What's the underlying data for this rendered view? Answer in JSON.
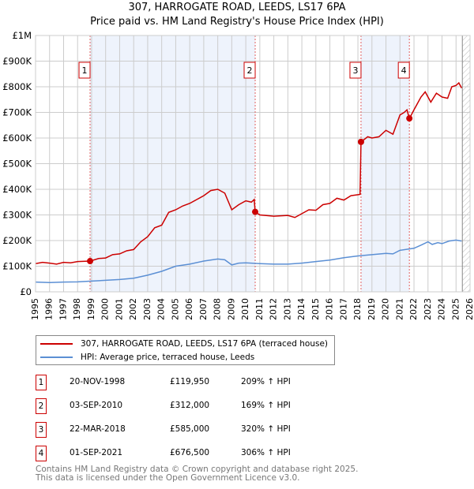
{
  "chart_data": {
    "type": "line",
    "title": "307, HARROGATE ROAD, LEEDS, LS17 6PA",
    "subtitle": "Price paid vs. HM Land Registry's House Price Index (HPI)",
    "xlim": [
      1995,
      2026
    ],
    "ylim": [
      0,
      1000000
    ],
    "x_ticks": [
      "1995",
      "1996",
      "1997",
      "1998",
      "1999",
      "2000",
      "2001",
      "2002",
      "2003",
      "2004",
      "2005",
      "2006",
      "2007",
      "2008",
      "2009",
      "2010",
      "2011",
      "2012",
      "2013",
      "2014",
      "2015",
      "2016",
      "2017",
      "2018",
      "2019",
      "2020",
      "2021",
      "2022",
      "2023",
      "2024",
      "2025",
      "2026"
    ],
    "y_ticks": [
      {
        "v": 0,
        "l": "£0"
      },
      {
        "v": 100000,
        "l": "£100K"
      },
      {
        "v": 200000,
        "l": "£200K"
      },
      {
        "v": 300000,
        "l": "£300K"
      },
      {
        "v": 400000,
        "l": "£400K"
      },
      {
        "v": 500000,
        "l": "£500K"
      },
      {
        "v": 600000,
        "l": "£600K"
      },
      {
        "v": 700000,
        "l": "£700K"
      },
      {
        "v": 800000,
        "l": "£800K"
      },
      {
        "v": 900000,
        "l": "£900K"
      },
      {
        "v": 1000000,
        "l": "£1M"
      }
    ],
    "grid": true,
    "series": [
      {
        "name": "307, HARROGATE ROAD, LEEDS, LS17 6PA (terraced house)",
        "color": "#cc0000",
        "points": [
          [
            1995,
            110
          ],
          [
            1995.5,
            115
          ],
          [
            1996,
            112
          ],
          [
            1996.5,
            108
          ],
          [
            1997,
            115
          ],
          [
            1997.5,
            113
          ],
          [
            1998,
            118
          ],
          [
            1998.9,
            120
          ],
          [
            1999.5,
            130
          ],
          [
            2000,
            132
          ],
          [
            2000.5,
            145
          ],
          [
            2001,
            148
          ],
          [
            2001.5,
            160
          ],
          [
            2002,
            165
          ],
          [
            2002.5,
            195
          ],
          [
            2003,
            215
          ],
          [
            2003.5,
            250
          ],
          [
            2004,
            260
          ],
          [
            2004.5,
            310
          ],
          [
            2005,
            320
          ],
          [
            2005.5,
            335
          ],
          [
            2006,
            345
          ],
          [
            2006.5,
            360
          ],
          [
            2007,
            375
          ],
          [
            2007.5,
            395
          ],
          [
            2008,
            400
          ],
          [
            2008.5,
            385
          ],
          [
            2009,
            320
          ],
          [
            2009.5,
            340
          ],
          [
            2010,
            355
          ],
          [
            2010.4,
            350
          ],
          [
            2010.6,
            360
          ],
          [
            2010.67,
            312
          ],
          [
            2011,
            300
          ],
          [
            2012,
            295
          ],
          [
            2013,
            298
          ],
          [
            2013.5,
            290
          ],
          [
            2014,
            305
          ],
          [
            2014.5,
            320
          ],
          [
            2015,
            318
          ],
          [
            2015.5,
            340
          ],
          [
            2016,
            345
          ],
          [
            2016.5,
            365
          ],
          [
            2017,
            358
          ],
          [
            2017.5,
            375
          ],
          [
            2018.15,
            380
          ],
          [
            2018.22,
            585
          ],
          [
            2018.7,
            605
          ],
          [
            2019,
            600
          ],
          [
            2019.5,
            605
          ],
          [
            2020,
            630
          ],
          [
            2020.5,
            615
          ],
          [
            2021,
            690
          ],
          [
            2021.3,
            700
          ],
          [
            2021.5,
            710
          ],
          [
            2021.67,
            676
          ],
          [
            2022,
            710
          ],
          [
            2022.5,
            760
          ],
          [
            2022.8,
            780
          ],
          [
            2023.2,
            740
          ],
          [
            2023.6,
            775
          ],
          [
            2024,
            760
          ],
          [
            2024.4,
            755
          ],
          [
            2024.7,
            800
          ],
          [
            2025,
            805
          ],
          [
            2025.2,
            815
          ],
          [
            2025.4,
            795
          ]
        ]
      },
      {
        "name": "HPI: Average price, terraced house, Leeds",
        "color": "#5b8fd4",
        "points": [
          [
            1995,
            38
          ],
          [
            1996,
            36
          ],
          [
            1997,
            38
          ],
          [
            1998,
            39
          ],
          [
            1999,
            42
          ],
          [
            2000,
            45
          ],
          [
            2001,
            48
          ],
          [
            2002,
            53
          ],
          [
            2003,
            65
          ],
          [
            2004,
            80
          ],
          [
            2005,
            100
          ],
          [
            2006,
            108
          ],
          [
            2007,
            120
          ],
          [
            2008,
            128
          ],
          [
            2008.5,
            125
          ],
          [
            2009,
            105
          ],
          [
            2009.5,
            112
          ],
          [
            2010,
            113
          ],
          [
            2011,
            110
          ],
          [
            2012,
            108
          ],
          [
            2013,
            108
          ],
          [
            2014,
            112
          ],
          [
            2015,
            118
          ],
          [
            2016,
            124
          ],
          [
            2017,
            133
          ],
          [
            2018,
            140
          ],
          [
            2019,
            145
          ],
          [
            2020,
            150
          ],
          [
            2020.5,
            148
          ],
          [
            2021,
            162
          ],
          [
            2022,
            170
          ],
          [
            2022.5,
            182
          ],
          [
            2023,
            195
          ],
          [
            2023.3,
            185
          ],
          [
            2023.7,
            192
          ],
          [
            2024,
            188
          ],
          [
            2024.5,
            198
          ],
          [
            2025,
            202
          ],
          [
            2025.4,
            198
          ]
        ]
      }
    ],
    "units_note": "values in £K",
    "sales": [
      {
        "n": "1",
        "x": 1998.89,
        "y": 119.95,
        "date": "20-NOV-1998",
        "price": "£119,950",
        "hpi": "209% ↑ HPI"
      },
      {
        "n": "2",
        "x": 2010.67,
        "y": 312,
        "date": "03-SEP-2010",
        "price": "£312,000",
        "hpi": "169% ↑ HPI"
      },
      {
        "n": "3",
        "x": 2018.22,
        "y": 585,
        "date": "22-MAR-2018",
        "price": "£585,000",
        "hpi": "320% ↑ HPI"
      },
      {
        "n": "4",
        "x": 2021.67,
        "y": 676.5,
        "date": "01-SEP-2021",
        "price": "£676,500",
        "hpi": "306% ↑ HPI"
      }
    ],
    "shaded_ranges": [
      [
        1998.89,
        2010.67
      ],
      [
        2018.22,
        2021.67
      ]
    ],
    "future_from": 2025.45
  },
  "footer": [
    "Contains HM Land Registry data © Crown copyright and database right 2025.",
    "This data is licensed under the Open Government Licence v3.0."
  ]
}
